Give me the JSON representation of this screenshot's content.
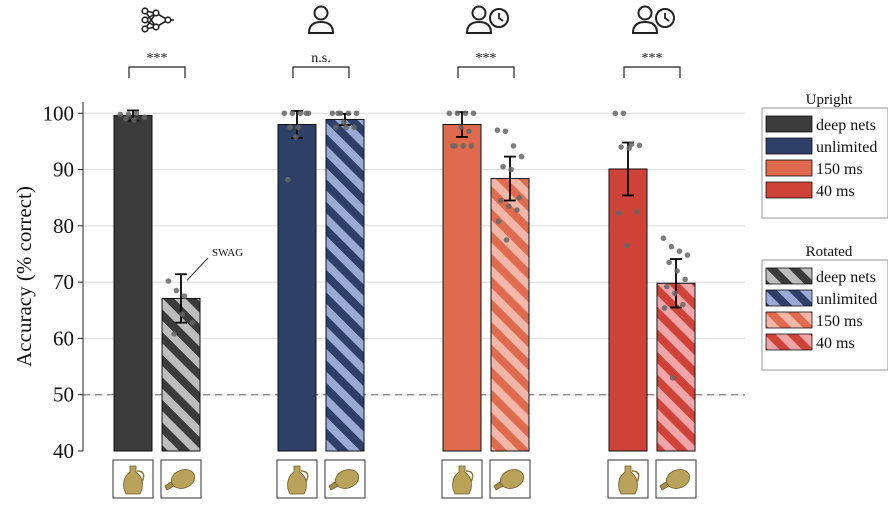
{
  "chart_data": {
    "type": "bar",
    "ylabel": "Accuracy (% correct)",
    "ylim": [
      40,
      102
    ],
    "yticks": [
      40,
      50,
      60,
      70,
      80,
      90,
      100
    ],
    "grid": true,
    "chance_line": 50,
    "groups": [
      {
        "icon": "network-icon",
        "significance": "***",
        "bars": [
          {
            "condition": "Upright",
            "series": "deep nets",
            "value": 99.6,
            "error": [
              98.7,
              100.5
            ],
            "points": [
              99.8,
              99.8,
              100.0,
              99.3,
              99.0,
              98.8
            ]
          },
          {
            "condition": "Rotated",
            "series": "deep nets",
            "value": 67.1,
            "error": [
              62.8,
              71.4
            ],
            "points": [
              70.2,
              68.5,
              67.5,
              62.8,
              60.8,
              64.3
            ],
            "annotation": "SWAG"
          }
        ]
      },
      {
        "icon": "person-icon",
        "significance": "n.s.",
        "bars": [
          {
            "condition": "Upright",
            "series": "unlimited",
            "value": 98.0,
            "error": [
              95.6,
              100.4
            ],
            "points": [
              100,
              100,
              100,
              100,
              97.5,
              97.5,
              100,
              88.2,
              95.8
            ]
          },
          {
            "condition": "Rotated",
            "series": "unlimited",
            "value": 98.9,
            "error": [
              97.9,
              99.9
            ],
            "points": [
              100,
              100,
              100,
              100,
              100,
              97.5,
              97.5,
              97.5,
              98.4
            ]
          }
        ]
      },
      {
        "icon": "person-clock-icon",
        "significance": "***",
        "bars": [
          {
            "condition": "Upright",
            "series": "150 ms",
            "value": 98.0,
            "error": [
              95.8,
              100.2
            ],
            "points": [
              100,
              100,
              100,
              100,
              94.2,
              94.2,
              94.2,
              94.2,
              97.5,
              96.8
            ]
          },
          {
            "condition": "Rotated",
            "series": "150 ms",
            "value": 88.4,
            "error": [
              84.5,
              92.3
            ],
            "points": [
              97.0,
              96.8,
              94.2,
              92.3,
              90.5,
              90.0,
              85.0,
              84.5,
              83.5,
              82.8,
              80.8,
              77.5
            ]
          }
        ]
      },
      {
        "icon": "person-clock-icon",
        "significance": "***",
        "bars": [
          {
            "condition": "Upright",
            "series": "40 ms",
            "value": 90.1,
            "error": [
              85.4,
              94.8
            ],
            "points": [
              100,
              100,
              94.5,
              94.3,
              94.0,
              93.8,
              82.5,
              82.3,
              76.5
            ]
          },
          {
            "condition": "Rotated",
            "series": "40 ms",
            "value": 69.8,
            "error": [
              65.5,
              74.1
            ],
            "points": [
              77.8,
              76.3,
              75.5,
              74.8,
              73.5,
              72.0,
              70.5,
              69.2,
              68.0,
              66.0,
              65.4,
              53.0
            ]
          }
        ]
      }
    ],
    "legend": {
      "placement": "right",
      "sections": [
        {
          "title": "Upright",
          "entries": [
            {
              "label": "deep nets",
              "color": "#3b3b3b",
              "hatched": false
            },
            {
              "label": "unlimited",
              "color": "#2e4068",
              "hatched": false
            },
            {
              "label": "150 ms",
              "color": "#e06a4e",
              "hatched": false
            },
            {
              "label": "40 ms",
              "color": "#cf4238",
              "hatched": false
            }
          ]
        },
        {
          "title": "Rotated",
          "entries": [
            {
              "label": "deep nets",
              "color": "#3b3b3b",
              "light": "#bdbdbd",
              "hatched": true
            },
            {
              "label": "unlimited",
              "color": "#2e4068",
              "light": "#9aaad4",
              "hatched": true
            },
            {
              "label": "150 ms",
              "color": "#e06a4e",
              "light": "#f2b7a8",
              "hatched": true
            },
            {
              "label": "40 ms",
              "color": "#cf4238",
              "light": "#f2a5a8",
              "hatched": true
            }
          ]
        }
      ]
    }
  }
}
